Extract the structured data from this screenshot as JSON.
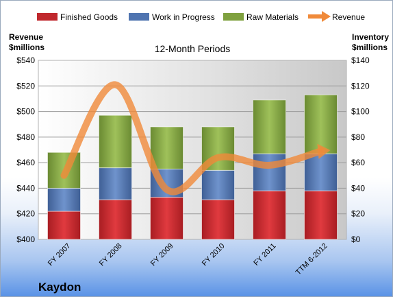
{
  "chart_data": {
    "type": "bar",
    "stacked": true,
    "title": "12-Month Periods",
    "company": "Kaydon",
    "categories": [
      "FY 2007",
      "FY 2008",
      "FY 2009",
      "FY 2010",
      "FY 2011",
      "TTM 6-2012"
    ],
    "left_axis": {
      "label_line1": "Revenue",
      "label_line2": "$millions",
      "range": [
        400,
        540
      ],
      "ticks": [
        "$400",
        "$420",
        "$440",
        "$460",
        "$480",
        "$500",
        "$520",
        "$540"
      ]
    },
    "right_axis": {
      "label_line1": "Inventory",
      "label_line2": "$millions",
      "range": [
        0,
        140
      ],
      "ticks": [
        "$0",
        "$20",
        "$40",
        "$60",
        "$80",
        "$100",
        "$120",
        "$140"
      ]
    },
    "series": [
      {
        "name": "Finished Goods",
        "axis": "right",
        "type": "bar",
        "color": "#c0282d",
        "values": [
          22,
          31,
          33,
          31,
          38,
          38
        ]
      },
      {
        "name": "Work in Progress",
        "axis": "right",
        "type": "bar",
        "color": "#4f74b0",
        "values": [
          18,
          25,
          22,
          23,
          29,
          29
        ]
      },
      {
        "name": "Raw Materials",
        "axis": "right",
        "type": "bar",
        "color": "#7fa13f",
        "values": [
          28,
          41,
          33,
          34,
          42,
          46
        ]
      },
      {
        "name": "Revenue",
        "axis": "left",
        "type": "line",
        "color": "#f08a3a",
        "values": [
          450,
          521,
          439,
          464,
          458,
          469
        ]
      }
    ],
    "grid": "horizontal",
    "legend_position": "top"
  }
}
